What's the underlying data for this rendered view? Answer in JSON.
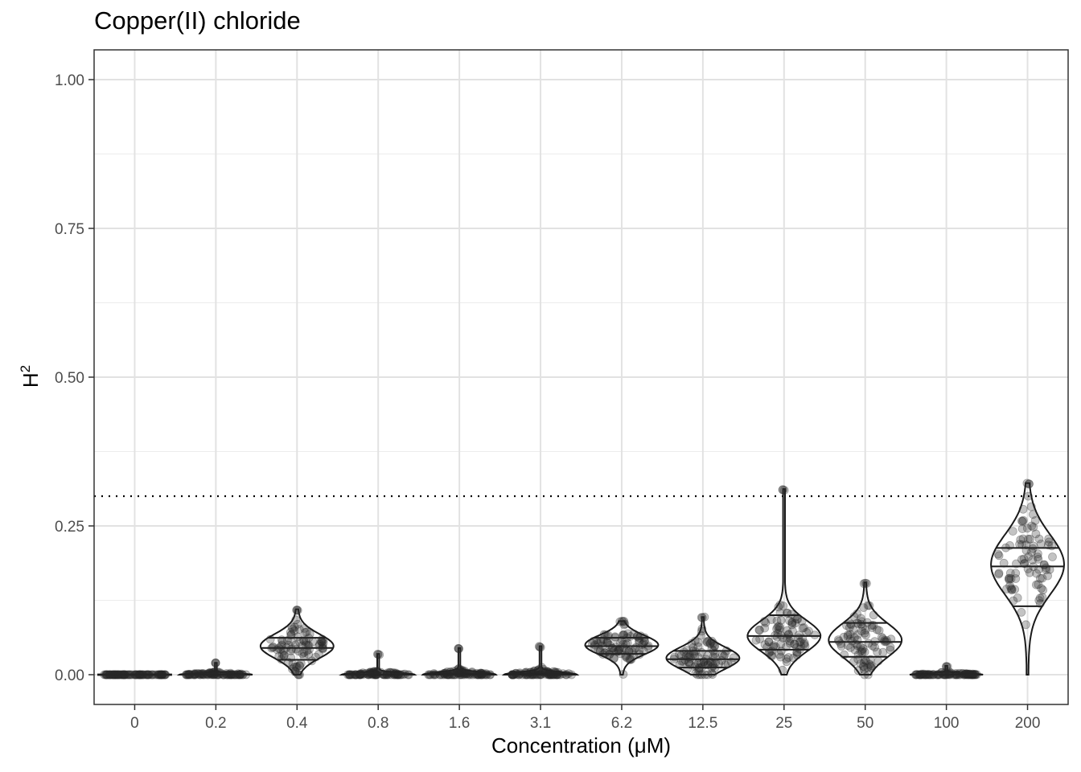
{
  "chart_data": {
    "type": "violin",
    "title": "Copper(II) chloride",
    "xlabel": "Concentration (μM)",
    "ylabel_base": "H",
    "ylabel_sup": "2",
    "ylim": [
      -0.05,
      1.05
    ],
    "yticks": [
      0.0,
      0.25,
      0.5,
      0.75,
      1.0
    ],
    "ytick_labels": [
      "0.00",
      "0.25",
      "0.50",
      "0.75",
      "1.00"
    ],
    "threshold_line": 0.3,
    "grid": true,
    "categories": [
      "0",
      "0.2",
      "0.4",
      "0.8",
      "1.6",
      "3.1",
      "6.2",
      "12.5",
      "25",
      "50",
      "100",
      "200"
    ],
    "groups": [
      {
        "label": "0",
        "min": 0.0,
        "max": 0.0,
        "q1": 0.0,
        "median": 0.0,
        "q3": 0.0,
        "mode": 0.0,
        "spread": 0.0005
      },
      {
        "label": "0.2",
        "min": 0.0,
        "max": 0.02,
        "q1": 0.0,
        "median": 0.0,
        "q3": 0.0,
        "mode": 0.0,
        "spread": 0.002
      },
      {
        "label": "0.4",
        "min": 0.0,
        "max": 0.11,
        "q1": 0.025,
        "median": 0.045,
        "q3": 0.062,
        "mode": 0.048,
        "spread": 0.02
      },
      {
        "label": "0.8",
        "min": 0.0,
        "max": 0.035,
        "q1": 0.0,
        "median": 0.0,
        "q3": 0.0,
        "mode": 0.0,
        "spread": 0.003
      },
      {
        "label": "1.6",
        "min": 0.0,
        "max": 0.045,
        "q1": 0.0,
        "median": 0.0,
        "q3": 0.002,
        "mode": 0.0,
        "spread": 0.004
      },
      {
        "label": "3.1",
        "min": 0.0,
        "max": 0.048,
        "q1": 0.0,
        "median": 0.0,
        "q3": 0.002,
        "mode": 0.0,
        "spread": 0.004
      },
      {
        "label": "6.2",
        "min": 0.0,
        "max": 0.09,
        "q1": 0.035,
        "median": 0.048,
        "q3": 0.062,
        "mode": 0.05,
        "spread": 0.016
      },
      {
        "label": "12.5",
        "min": 0.0,
        "max": 0.097,
        "q1": 0.012,
        "median": 0.026,
        "q3": 0.04,
        "mode": 0.028,
        "spread": 0.018
      },
      {
        "label": "25",
        "min": 0.0,
        "max": 0.312,
        "q1": 0.042,
        "median": 0.065,
        "q3": 0.1,
        "mode": 0.065,
        "spread": 0.026
      },
      {
        "label": "50",
        "min": 0.0,
        "max": 0.155,
        "q1": 0.03,
        "median": 0.055,
        "q3": 0.087,
        "mode": 0.058,
        "spread": 0.028
      },
      {
        "label": "100",
        "min": 0.0,
        "max": 0.015,
        "q1": 0.0,
        "median": 0.0,
        "q3": 0.0,
        "mode": 0.0,
        "spread": 0.002
      },
      {
        "label": "200",
        "min": 0.0,
        "max": 0.322,
        "q1": 0.115,
        "median": 0.182,
        "q3": 0.213,
        "mode": 0.185,
        "spread": 0.05
      }
    ]
  }
}
